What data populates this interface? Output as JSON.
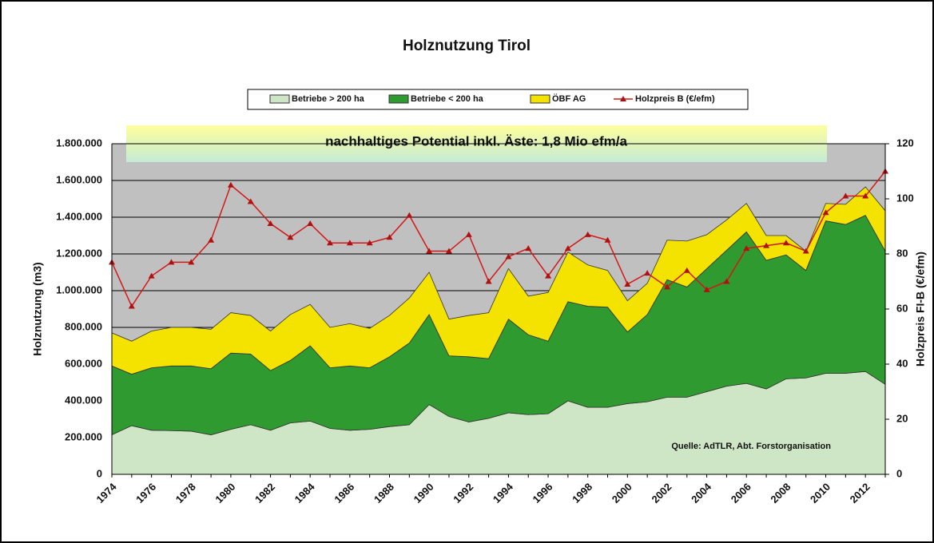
{
  "chart_data": {
    "type": "stacked_area_line",
    "title": "Holznutzung  Tirol",
    "ylabel": "Holznutzung (m3)",
    "y2label": "Holzpreis FI-B (€/efm)",
    "annotations": [
      "nachhaltiges Potential inkl. Äste: 1,8 Mio efm/a",
      "Quelle: AdTLR, Abt. Forstorganisation"
    ],
    "categories": [
      "1974",
      null,
      "1976",
      null,
      "1978",
      null,
      "1980",
      null,
      "1982",
      null,
      "1984",
      null,
      "1986",
      null,
      "1988",
      null,
      "1990",
      null,
      "1992",
      null,
      "1994",
      null,
      "1996",
      null,
      "1998",
      null,
      "2000",
      null,
      "2002",
      null,
      "2004",
      null,
      "2006",
      null,
      "2008",
      null,
      "2010",
      null,
      "2012",
      null
    ],
    "series": [
      {
        "name": "Betriebe > 200 ha",
        "color": "#cfe6c6",
        "stack": true,
        "values": [
          215000,
          265000,
          240000,
          238000,
          235000,
          215000,
          245000,
          270000,
          240000,
          280000,
          290000,
          250000,
          240000,
          245000,
          260000,
          270000,
          380000,
          315000,
          285000,
          305000,
          335000,
          325000,
          330000,
          400000,
          365000,
          365000,
          385000,
          395000,
          420000,
          420000,
          450000,
          480000,
          495000,
          465000,
          520000,
          525000,
          550000,
          550000,
          560000,
          490000
        ]
      },
      {
        "name": "Betriebe < 200 ha",
        "color": "#2f9a2f",
        "stack": true,
        "values": [
          375000,
          280000,
          340000,
          352000,
          355000,
          360000,
          415000,
          385000,
          325000,
          340000,
          410000,
          330000,
          350000,
          335000,
          380000,
          445000,
          490000,
          330000,
          355000,
          325000,
          510000,
          435000,
          395000,
          540000,
          550000,
          545000,
          390000,
          475000,
          640000,
          600000,
          670000,
          740000,
          825000,
          700000,
          675000,
          585000,
          830000,
          810000,
          850000,
          725000
        ]
      },
      {
        "name": "ÖBF AG",
        "color": "#f4e200",
        "stack": true,
        "values": [
          180000,
          180000,
          200000,
          210000,
          210000,
          215000,
          220000,
          210000,
          215000,
          250000,
          225000,
          220000,
          230000,
          215000,
          225000,
          245000,
          230000,
          200000,
          225000,
          250000,
          275000,
          210000,
          265000,
          270000,
          225000,
          200000,
          170000,
          170000,
          215000,
          250000,
          185000,
          165000,
          155000,
          135000,
          105000,
          105000,
          95000,
          110000,
          155000,
          220000
        ]
      },
      {
        "name": "Holzpreis B (€/efm)",
        "color": "#d41818",
        "axis": "y2",
        "values": [
          77,
          61,
          72,
          77,
          77,
          85,
          105,
          99,
          91,
          86,
          91,
          84,
          84,
          84,
          86,
          94,
          81,
          81,
          87,
          70,
          79,
          82,
          72,
          82,
          87,
          85,
          69,
          73,
          68,
          74,
          67,
          70,
          82,
          83,
          84,
          81,
          95,
          101,
          101,
          110
        ]
      }
    ],
    "ylim": [
      0,
      1800000
    ],
    "yticks": [
      0,
      {
        "value": 200000,
        "label": "200.000"
      },
      {
        "value": 400000,
        "label": "400.000"
      },
      {
        "value": 600000,
        "label": "600.000"
      },
      {
        "value": 800000,
        "label": "800.000"
      },
      {
        "value": 1000000,
        "label": "1.000.000"
      },
      {
        "value": 1200000,
        "label": "1.200.000"
      },
      {
        "value": 1400000,
        "label": "1.400.000"
      },
      {
        "value": 1600000,
        "label": "1.600.000"
      },
      {
        "value": 1800000,
        "label": "1.800.000"
      }
    ],
    "y2lim": [
      0,
      120
    ],
    "y2ticks": [
      0,
      20,
      40,
      60,
      80,
      100,
      120
    ],
    "grid": true,
    "legend": "top"
  }
}
